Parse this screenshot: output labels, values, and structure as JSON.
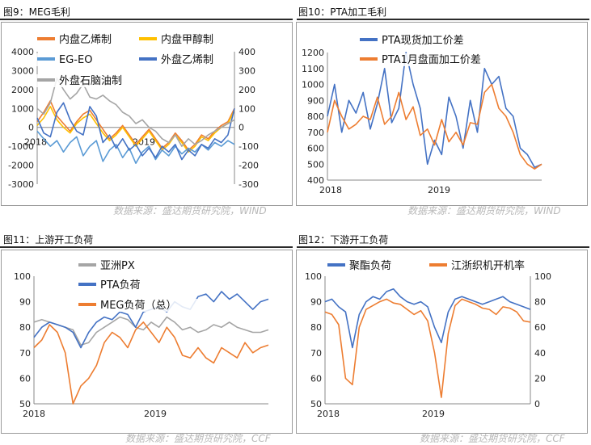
{
  "figures": [
    {
      "caption": "图9：MEG毛利",
      "source": "数据来源：盛达期货研究院，WIND"
    },
    {
      "caption": "图10：PTA加工毛利",
      "source": "数据来源：盛达期货研究院，WIND"
    },
    {
      "caption": "图11：上游开工负荷",
      "source": "数据来源：盛达期货研究院，CCF"
    },
    {
      "caption": "图12：下游开工负荷",
      "source": "数据来源：盛达期货研究院，CCF"
    }
  ],
  "chart_data": [
    {
      "type": "line",
      "title": "",
      "x_ticks": [
        "2018",
        "2019"
      ],
      "ylim": [
        -3000,
        4000
      ],
      "yticks": [
        -3000,
        -2000,
        -1000,
        0,
        1000,
        2000,
        3000,
        4000
      ],
      "y2lim": [
        -300,
        400
      ],
      "y2ticks": [
        -300,
        -200,
        -100,
        0,
        100,
        200,
        300,
        400
      ],
      "legend_position": "top-left",
      "series": [
        {
          "name": "内盘乙烯制",
          "axis": "left",
          "color": "#ed7d31",
          "values": [
            300,
            800,
            1400,
            600,
            200,
            -200,
            300,
            700,
            900,
            400,
            -100,
            -600,
            -300,
            100,
            -400,
            -900,
            -500,
            -100,
            -600,
            -1100,
            -800,
            -300,
            -700,
            -1200,
            -900,
            -400,
            -600,
            -200,
            100,
            300,
            1000
          ]
        },
        {
          "name": "内盘甲醇制",
          "axis": "left",
          "color": "#ffc000",
          "values": [
            100,
            500,
            1100,
            400,
            0,
            -300,
            200,
            500,
            700,
            200,
            -300,
            -700,
            -400,
            0,
            -500,
            -1000,
            -600,
            -200,
            -700,
            -1200,
            -900,
            -400,
            -800,
            -1300,
            -1000,
            -500,
            -700,
            -300,
            0,
            200,
            900
          ]
        },
        {
          "name": "EG-EO",
          "axis": "left",
          "color": "#5b9bd5",
          "values": [
            -200,
            -600,
            -1000,
            -700,
            -1300,
            -800,
            -500,
            -1500,
            -1000,
            -700,
            -1800,
            -1200,
            -900,
            -1600,
            -1100,
            -1900,
            -1300,
            -1000,
            -1700,
            -1200,
            -1500,
            -1000,
            -1400,
            -1100,
            -1300,
            -900,
            -1200,
            -800,
            -1000,
            -700,
            -900
          ]
        },
        {
          "name": "外盘乙烯制",
          "axis": "right",
          "color": "#4472c4",
          "values": [
            50,
            -30,
            -50,
            80,
            130,
            40,
            -20,
            -40,
            110,
            60,
            -80,
            -40,
            -110,
            -60,
            -120,
            -90,
            -150,
            -110,
            -160,
            -100,
            -130,
            -90,
            -170,
            -120,
            -150,
            -90,
            -110,
            -60,
            -80,
            -40,
            100
          ]
        },
        {
          "name": "外盘石脑油制",
          "axis": "right",
          "color": "#a5a5a5",
          "values": [
            100,
            70,
            130,
            260,
            200,
            150,
            180,
            230,
            160,
            150,
            170,
            140,
            120,
            80,
            60,
            20,
            40,
            0,
            -20,
            -60,
            -80,
            -40,
            -100,
            -60,
            -90,
            -70,
            -40,
            -20,
            0,
            20,
            40
          ]
        }
      ]
    },
    {
      "type": "line",
      "title": "",
      "x_ticks": [
        "2018",
        "2019"
      ],
      "ylim": [
        400,
        1200
      ],
      "yticks": [
        400,
        500,
        600,
        700,
        800,
        900,
        1000,
        1100,
        1200
      ],
      "legend_position": "top-left",
      "series": [
        {
          "name": "PTA现货加工价差",
          "color": "#4472c4",
          "values": [
            800,
            1000,
            700,
            900,
            820,
            950,
            720,
            880,
            1100,
            760,
            850,
            1200,
            1000,
            850,
            500,
            650,
            560,
            920,
            800,
            600,
            900,
            700,
            1100,
            1000,
            1050,
            850,
            800,
            600,
            560,
            480,
            500
          ]
        },
        {
          "name": "PTA1月盘面加工价差",
          "color": "#ed7d31",
          "values": [
            700,
            900,
            800,
            720,
            750,
            800,
            780,
            920,
            750,
            800,
            950,
            780,
            860,
            680,
            720,
            620,
            780,
            640,
            700,
            620,
            760,
            750,
            950,
            1000,
            850,
            800,
            700,
            560,
            500,
            470,
            500
          ]
        }
      ]
    },
    {
      "type": "line",
      "title": "",
      "x_ticks": [
        "2018",
        "2019"
      ],
      "ylim": [
        50,
        100
      ],
      "yticks": [
        50,
        60,
        70,
        80,
        90,
        100
      ],
      "legend_position": "top-center",
      "series": [
        {
          "name": "亚洲PX",
          "color": "#a5a5a5",
          "values": [
            82,
            83,
            82,
            81,
            80,
            79,
            73,
            74,
            78,
            80,
            82,
            84,
            83,
            80,
            79,
            82,
            80,
            84,
            82,
            79,
            80,
            78,
            79,
            81,
            80,
            82,
            80,
            79,
            78,
            78,
            79
          ]
        },
        {
          "name": "PTA负荷",
          "color": "#4472c4",
          "values": [
            76,
            80,
            82,
            81,
            80,
            78,
            72,
            78,
            82,
            84,
            83,
            86,
            85,
            80,
            86,
            87,
            88,
            86,
            90,
            88,
            87,
            92,
            93,
            90,
            94,
            91,
            93,
            90,
            87,
            90,
            91
          ]
        },
        {
          "name": "MEG负荷（总）",
          "color": "#ed7d31",
          "values": [
            72,
            75,
            81,
            78,
            70,
            50,
            57,
            60,
            65,
            74,
            78,
            76,
            72,
            79,
            82,
            78,
            74,
            80,
            76,
            69,
            68,
            72,
            68,
            66,
            72,
            70,
            68,
            74,
            70,
            72,
            73
          ]
        }
      ]
    },
    {
      "type": "line",
      "title": "",
      "x_ticks": [
        "2018",
        "2019"
      ],
      "ylim": [
        50,
        100
      ],
      "yticks": [
        50,
        60,
        70,
        80,
        90,
        100
      ],
      "y2lim": [
        0,
        100
      ],
      "y2ticks": [
        0,
        20,
        40,
        60,
        80,
        100
      ],
      "legend_position": "top-center",
      "series": [
        {
          "name": "聚酯负荷",
          "axis": "left",
          "color": "#4472c4",
          "values": [
            90,
            91,
            88,
            86,
            72,
            85,
            90,
            92,
            91,
            94,
            95,
            92,
            90,
            89,
            90,
            88,
            80,
            74,
            86,
            91,
            92,
            91,
            90,
            89,
            90,
            91,
            92,
            90,
            89,
            88,
            87
          ]
        },
        {
          "name": "江浙织机开机率",
          "axis": "right",
          "color": "#ed7d31",
          "values": [
            72,
            70,
            62,
            20,
            15,
            60,
            74,
            77,
            80,
            82,
            79,
            78,
            74,
            70,
            73,
            65,
            40,
            5,
            55,
            77,
            82,
            80,
            78,
            75,
            74,
            70,
            76,
            75,
            72,
            65,
            64
          ]
        }
      ]
    }
  ]
}
